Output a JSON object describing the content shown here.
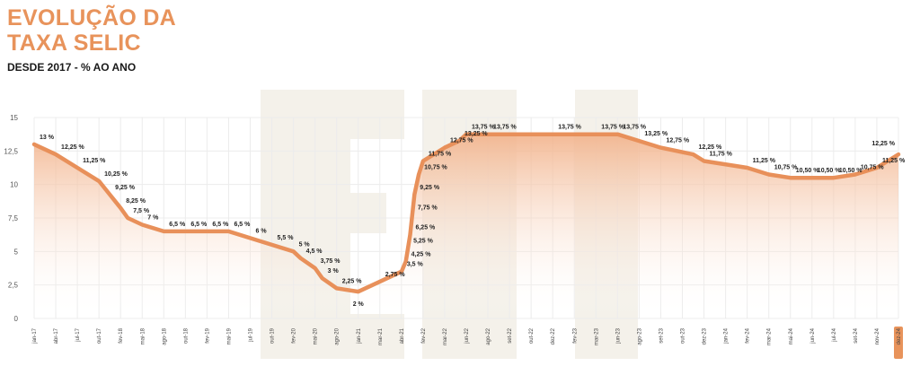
{
  "header": {
    "title_line1": "EVOLUÇÃO DA",
    "title_line2": "TAXA SELIC",
    "subtitle": "DESDE 2017 - % AO ANO"
  },
  "colors": {
    "accent": "#e8935b",
    "line": "#e8905a",
    "fill_top": "#f2b28a",
    "grid": "#ececec",
    "watermark": "#f4f1ea",
    "highlight_badge": "#e8935b"
  },
  "chart_data": {
    "type": "area",
    "title": "EVOLUÇÃO DA TAXA SELIC",
    "subtitle": "DESDE 2017 - % AO ANO",
    "xlabel": "",
    "ylabel": "",
    "ylim": [
      0,
      15
    ],
    "yticks": [
      "0",
      "2,5",
      "5",
      "7,5",
      "10",
      "12,5",
      "15"
    ],
    "grid": true,
    "highlighted_tick": "dez-24",
    "x_ticks": [
      "jan-17",
      "abr-17",
      "jul-17",
      "out-17",
      "fev-18",
      "mai-18",
      "ago-18",
      "out-18",
      "fev-19",
      "mai-19",
      "jul-19",
      "out-19",
      "fev-20",
      "mai-20",
      "ago-20",
      "jan-21",
      "mar-21",
      "abr-21",
      "fev-22",
      "mar-22",
      "jun-22",
      "ago-22",
      "set-22",
      "out-22",
      "dez-22",
      "fev-23",
      "mar-23",
      "jun-23",
      "ago-23",
      "set-23",
      "out-23",
      "dez-23",
      "jan-24",
      "fev-24",
      "mar-24",
      "mai-24",
      "jun-24",
      "jul-24",
      "set-24",
      "nov-24",
      "dez-24"
    ],
    "series": [
      {
        "name": "Selic",
        "x": [
          "jan-17",
          "abr-17",
          "jul-17",
          "out-17",
          "dez-17",
          "fev-18",
          "mar-18",
          "mai-18",
          "ago-18",
          "out-18",
          "fev-19",
          "mai-19",
          "jul-19",
          "out-19",
          "fev-20",
          "mar-20",
          "mai-20",
          "jun-20",
          "ago-20",
          "jan-21",
          "mar-21",
          "abr-21",
          "jun-21",
          "jul-21",
          "ago-21",
          "set-21",
          "out-21",
          "dez-21",
          "fev-22",
          "mar-22",
          "mai-22",
          "jun-22",
          "ago-22",
          "dez-22",
          "mar-23",
          "jun-23",
          "ago-23",
          "set-23",
          "nov-23",
          "dez-23",
          "fev-24",
          "mar-24",
          "mai-24",
          "jun-24",
          "jul-24",
          "set-24",
          "nov-24",
          "dez-24"
        ],
        "values": [
          13,
          12.25,
          11.25,
          10.25,
          9.25,
          8.25,
          7.5,
          7,
          6.5,
          6.5,
          6.5,
          6.5,
          6,
          5.5,
          5,
          4.5,
          3.75,
          3,
          2.25,
          2,
          2.75,
          3.5,
          4.25,
          5.25,
          6.25,
          7.75,
          9.25,
          10.75,
          11.75,
          12.75,
          13.25,
          13.75,
          13.75,
          13.75,
          13.75,
          13.75,
          13.25,
          12.75,
          12.25,
          11.75,
          11.25,
          10.75,
          10.5,
          10.5,
          10.5,
          10.75,
          11.25,
          12.25
        ],
        "labels": [
          "13 %",
          "12,25 %",
          "11,25 %",
          "10,25 %",
          "9,25 %",
          "8,25 %",
          "7,5 %",
          "7 %",
          "6,5 %",
          "6,5 %",
          "6,5 %",
          "6,5 %",
          "6 %",
          "5,5 %",
          "5 %",
          "4,5 %",
          "3,75 %",
          "3 %",
          "2,25 %",
          "2 %",
          "2,75 %",
          "3,5 %",
          "4,25 %",
          "5,25 %",
          "6,25 %",
          "7,75 %",
          "9,25 %",
          "10,75 %",
          "11,75 %",
          "12,75 %",
          "13,25 %",
          "13,75 %",
          "13,75 %",
          "13,75 %",
          "13,75 %",
          "13,75 %",
          "13,25 %",
          "12,75 %",
          "12,25 %",
          "11,75 %",
          "11,25 %",
          "10,75 %",
          "10,50 %",
          "10,50 %",
          "10,50 %",
          "10,75 %",
          "11,25 %",
          "12,25 %"
        ]
      }
    ]
  }
}
